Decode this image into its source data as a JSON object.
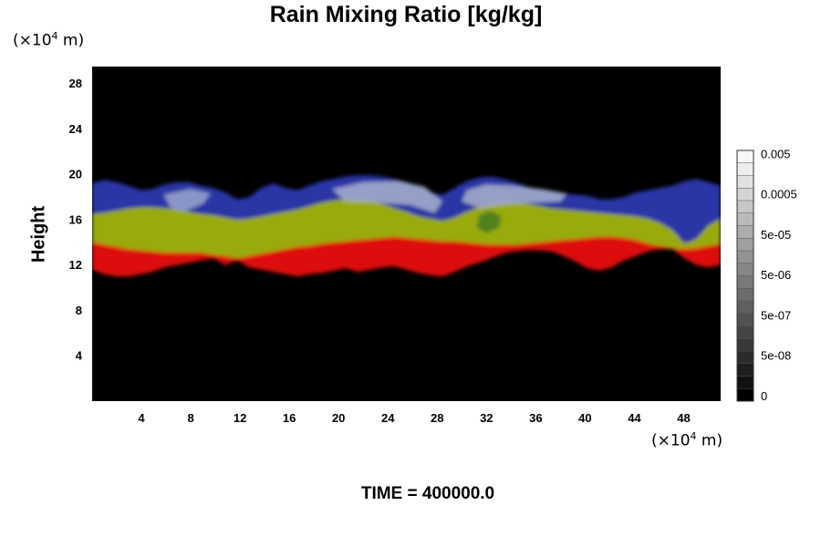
{
  "chart_data": {
    "type": "heatmap",
    "title": "Rain Mixing Ratio [kg/kg]",
    "ylabel": "Height",
    "x_unit": {
      "prefix": "(×10",
      "exp": "4",
      "suffix": " m)"
    },
    "y_unit": {
      "prefix": "(×10",
      "exp": "4",
      "suffix": " m)"
    },
    "xlim": [
      0,
      51
    ],
    "ylim": [
      0,
      29.5
    ],
    "x_ticks": [
      4,
      8,
      12,
      16,
      20,
      24,
      28,
      32,
      36,
      40,
      44,
      48
    ],
    "y_ticks": [
      4,
      8,
      12,
      16,
      20,
      24,
      28
    ],
    "colorbar": {
      "labels": [
        "0.005",
        "0.0005",
        "5e-05",
        "5e-06",
        "5e-07",
        "5e-08",
        "0"
      ],
      "gray_levels": [
        "#000000",
        "#111111",
        "#1e1e1e",
        "#2b2b2b",
        "#383838",
        "#454545",
        "#525252",
        "#5f5f5f",
        "#6c6c6c",
        "#797979",
        "#868686",
        "#939393",
        "#a0a0a0",
        "#adadad",
        "#bababa",
        "#c7c7c7",
        "#d4d4d4",
        "#e1e1e1",
        "#eeeeee",
        "#f7f7f7"
      ]
    },
    "layers": [
      {
        "color": "#dd1111",
        "bottom": [
          11.6,
          11.2,
          11.0,
          11.0,
          11.2,
          11.4,
          11.8,
          12.0,
          12.2,
          12.4,
          12.6,
          12.0,
          12.4,
          11.8,
          11.6,
          11.4,
          11.2,
          11.0,
          11.2,
          11.3,
          11.5,
          11.7,
          11.4,
          11.6,
          11.8,
          11.9,
          11.6,
          11.3,
          11.1,
          11.0,
          11.4,
          11.9,
          12.2,
          12.6,
          13.0,
          13.2,
          13.3,
          13.3,
          13.2,
          12.8,
          12.3,
          11.7,
          11.5,
          11.8,
          12.4,
          12.8,
          13.2,
          13.4,
          13.4,
          12.6,
          12.0,
          11.8,
          12.0
        ],
        "top": [
          14.2,
          14.0,
          13.8,
          13.6,
          13.5,
          13.4,
          13.3,
          13.3,
          13.3,
          13.3,
          13.1,
          12.9,
          12.7,
          12.9,
          13.1,
          13.3,
          13.5,
          13.7,
          13.8,
          14.0,
          14.1,
          14.2,
          14.3,
          14.4,
          14.5,
          14.6,
          14.5,
          14.4,
          14.3,
          14.2,
          14.2,
          14.1,
          14.0,
          13.9,
          13.9,
          13.9,
          14.0,
          14.1,
          14.2,
          14.3,
          14.4,
          14.5,
          14.6,
          14.6,
          14.5,
          14.3,
          14.0,
          13.8,
          13.6,
          13.5,
          13.6,
          13.8,
          14.0
        ]
      },
      {
        "color": "#99aa10",
        "bottom": [
          14.0,
          13.8,
          13.6,
          13.4,
          13.3,
          13.2,
          13.1,
          13.1,
          13.1,
          13.1,
          12.9,
          12.8,
          12.6,
          12.8,
          13.0,
          13.2,
          13.4,
          13.6,
          13.7,
          13.9,
          14.0,
          14.1,
          14.2,
          14.3,
          14.4,
          14.5,
          14.4,
          14.3,
          14.2,
          14.1,
          14.1,
          14.0,
          13.9,
          13.8,
          13.8,
          13.8,
          13.9,
          14.0,
          14.1,
          14.2,
          14.3,
          14.4,
          14.5,
          14.5,
          14.4,
          14.2,
          13.9,
          13.7,
          13.5,
          13.4,
          13.5,
          13.7,
          13.9
        ],
        "top": [
          16.6,
          16.7,
          16.8,
          17.0,
          17.1,
          17.2,
          17.1,
          17.0,
          16.8,
          16.6,
          16.5,
          16.3,
          16.1,
          16.2,
          16.4,
          16.6,
          16.8,
          17.0,
          17.3,
          17.6,
          17.8,
          17.9,
          17.9,
          17.8,
          17.5,
          17.1,
          16.8,
          16.4,
          16.2,
          16.0,
          16.3,
          16.8,
          17.2,
          17.5,
          17.6,
          17.6,
          17.5,
          17.3,
          17.1,
          17.0,
          16.9,
          16.8,
          16.7,
          16.6,
          16.5,
          16.4,
          16.2,
          15.8,
          15.2,
          14.0,
          14.4,
          15.6,
          16.2
        ]
      },
      {
        "color": "#2a36a6",
        "bottom": [
          16.5,
          16.6,
          16.8,
          17.0,
          17.1,
          17.1,
          17.0,
          16.9,
          16.7,
          16.5,
          16.4,
          16.2,
          16.0,
          16.1,
          16.3,
          16.5,
          16.7,
          16.9,
          17.2,
          17.5,
          17.7,
          17.8,
          17.8,
          17.7,
          17.4,
          17.0,
          16.7,
          16.3,
          16.1,
          15.9,
          16.2,
          16.7,
          17.1,
          17.4,
          17.5,
          17.5,
          17.4,
          17.2,
          17.0,
          16.9,
          16.8,
          16.7,
          16.6,
          16.5,
          16.4,
          16.3,
          16.1,
          15.7,
          15.1,
          13.9,
          14.3,
          15.5,
          16.1
        ],
        "top": [
          19.2,
          19.5,
          19.3,
          19.0,
          18.6,
          18.7,
          19.1,
          19.3,
          19.3,
          19.0,
          18.8,
          18.4,
          17.8,
          18.0,
          18.8,
          19.2,
          18.8,
          18.6,
          19.0,
          19.4,
          19.6,
          19.8,
          19.9,
          19.9,
          19.8,
          19.6,
          19.3,
          18.8,
          18.4,
          18.2,
          18.8,
          19.4,
          19.7,
          19.8,
          19.6,
          19.3,
          18.9,
          18.6,
          18.4,
          18.3,
          18.2,
          18.1,
          17.8,
          17.8,
          18.0,
          18.4,
          18.6,
          18.8,
          19.0,
          19.4,
          19.6,
          19.3,
          19.0
        ]
      }
    ],
    "overlay": [
      {
        "color": "#9aa6cc",
        "points": [
          [
            5.8,
            18.2
          ],
          [
            8,
            18.7
          ],
          [
            9.6,
            18.3
          ],
          [
            9,
            17.4
          ],
          [
            7.4,
            16.7
          ],
          [
            6.4,
            17.0
          ]
        ]
      },
      {
        "color": "#a8b2ce",
        "points": [
          [
            19.5,
            18.7
          ],
          [
            22,
            19.3
          ],
          [
            25,
            19.4
          ],
          [
            27,
            18.9
          ],
          [
            28.4,
            17.6
          ],
          [
            27.8,
            16.6
          ],
          [
            25.8,
            17.3
          ],
          [
            23,
            17.5
          ],
          [
            20.5,
            17.6
          ]
        ]
      },
      {
        "color": "#a8b2ce",
        "points": [
          [
            30,
            17.6
          ],
          [
            30.4,
            18.6
          ],
          [
            32,
            19.1
          ],
          [
            34,
            19.0
          ],
          [
            36.5,
            18.7
          ],
          [
            38.5,
            18.3
          ],
          [
            38,
            17.6
          ],
          [
            36,
            17.5
          ],
          [
            33.2,
            17.3
          ],
          [
            31.5,
            17.0
          ]
        ]
      },
      {
        "color": "#447a22",
        "points": [
          [
            31.4,
            16.4
          ],
          [
            32.3,
            16.8
          ],
          [
            33.2,
            16.3
          ],
          [
            33.0,
            15.3
          ],
          [
            32.0,
            14.8
          ],
          [
            31.2,
            15.3
          ]
        ]
      }
    ]
  },
  "time_label": "TIME = 400000.0"
}
